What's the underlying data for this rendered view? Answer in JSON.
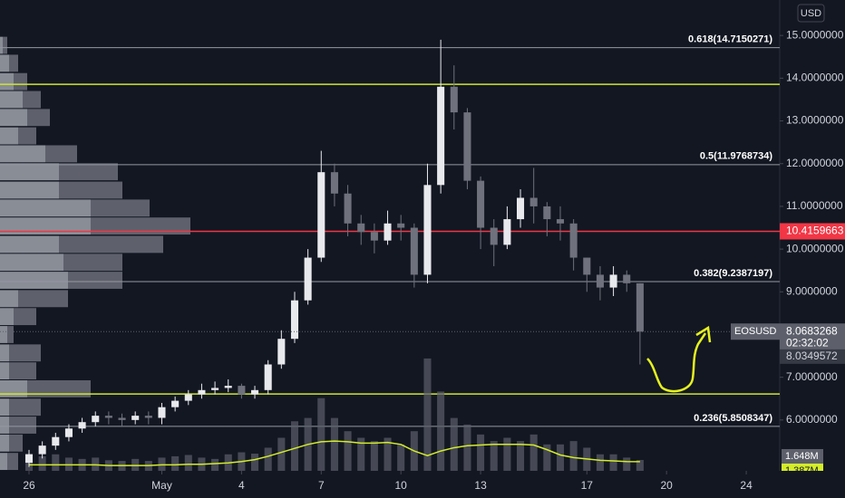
{
  "chart_data": {
    "type": "candlestick",
    "currency": "USD",
    "up_color": "#e8e9ed",
    "down_color": "#6f727c",
    "x": [
      0,
      0.5,
      1,
      1.5,
      2,
      2.5,
      3,
      3.5,
      4,
      4.5,
      5,
      5.5,
      6,
      6.5,
      7,
      7.5,
      8,
      8.5,
      9,
      9.5,
      10,
      10.5,
      11,
      11.5,
      12,
      12.5,
      13,
      13.5,
      14,
      14.5,
      15,
      15.5,
      16,
      16.5,
      17,
      17.5,
      18,
      18.5,
      19,
      19.5,
      20,
      20.5,
      21,
      21.5,
      22,
      22.5,
      23
    ],
    "open": [
      5.0,
      5.2,
      5.4,
      5.6,
      5.8,
      5.95,
      6.1,
      6.05,
      6.0,
      6.1,
      6.05,
      6.3,
      6.45,
      6.6,
      6.7,
      6.75,
      6.8,
      6.6,
      6.7,
      7.3,
      7.9,
      8.8,
      9.8,
      11.8,
      11.3,
      10.6,
      10.4,
      10.2,
      10.6,
      10.5,
      9.4,
      11.5,
      13.8,
      13.2,
      11.6,
      10.5,
      10.1,
      10.7,
      11.2,
      11.0,
      10.7,
      10.6,
      9.8,
      9.4,
      9.1,
      9.4,
      9.2
    ],
    "high": [
      5.3,
      5.5,
      5.7,
      5.9,
      6.05,
      6.2,
      6.2,
      6.15,
      6.2,
      6.2,
      6.4,
      6.55,
      6.7,
      6.85,
      6.9,
      6.95,
      6.85,
      6.8,
      7.4,
      8.1,
      9.0,
      10.0,
      12.3,
      12.0,
      11.5,
      10.8,
      10.6,
      10.9,
      10.8,
      10.6,
      12.0,
      14.9,
      14.3,
      13.3,
      11.7,
      10.7,
      11.0,
      11.4,
      11.9,
      11.1,
      11.0,
      10.7,
      9.8,
      9.6,
      9.6,
      9.5,
      9.2
    ],
    "low": [
      4.9,
      5.1,
      5.3,
      5.5,
      5.7,
      5.85,
      5.9,
      5.85,
      5.9,
      5.9,
      5.9,
      6.2,
      6.35,
      6.5,
      6.6,
      6.65,
      6.5,
      6.5,
      6.6,
      7.2,
      7.8,
      8.7,
      9.7,
      11.0,
      10.3,
      10.1,
      9.9,
      10.1,
      10.2,
      9.1,
      9.2,
      11.3,
      12.8,
      11.4,
      10.0,
      9.6,
      10.0,
      10.5,
      10.6,
      10.3,
      10.2,
      9.5,
      9.0,
      8.8,
      8.9,
      9.0,
      7.3
    ],
    "close": [
      5.2,
      5.4,
      5.6,
      5.8,
      5.95,
      6.1,
      6.05,
      6.0,
      6.1,
      6.05,
      6.3,
      6.45,
      6.6,
      6.7,
      6.75,
      6.8,
      6.6,
      6.7,
      7.3,
      7.9,
      8.8,
      9.8,
      11.8,
      11.3,
      10.6,
      10.4,
      10.2,
      10.6,
      10.5,
      9.4,
      11.5,
      13.8,
      13.2,
      11.6,
      10.5,
      10.1,
      10.7,
      11.2,
      11.0,
      10.7,
      10.6,
      9.8,
      9.4,
      9.1,
      9.4,
      9.2,
      8.0683268
    ],
    "volume": [
      1.8,
      2.2,
      2.5,
      2.0,
      1.8,
      2.0,
      1.6,
      1.5,
      1.8,
      1.5,
      2.0,
      2.2,
      2.4,
      2.0,
      1.8,
      2.5,
      2.8,
      2.6,
      3.5,
      5.0,
      7.5,
      8.0,
      11.0,
      8.0,
      6.0,
      5.0,
      4.5,
      5.0,
      4.0,
      6.0,
      17.0,
      12.0,
      8.0,
      7.0,
      5.5,
      4.5,
      5.0,
      4.5,
      5.5,
      4.0,
      4.0,
      4.5,
      3.5,
      2.5,
      2.5,
      2.0,
      1.648
    ],
    "volume_ma": [
      0.9,
      0.9,
      0.9,
      0.9,
      0.9,
      0.9,
      0.8,
      0.8,
      0.8,
      0.8,
      0.9,
      0.9,
      1.0,
      1.0,
      1.1,
      1.2,
      1.4,
      1.7,
      2.2,
      2.8,
      3.4,
      4.0,
      4.4,
      4.5,
      4.4,
      4.2,
      4.2,
      4.3,
      4.0,
      3.0,
      2.3,
      3.0,
      3.5,
      3.8,
      3.9,
      4.0,
      4.0,
      4.0,
      3.9,
      3.2,
      2.4,
      2.0,
      1.8,
      1.6,
      1.5,
      1.4,
      1.387
    ],
    "volume_color": "#5d606b",
    "volume_ma_color": "#d4ec2a",
    "vlim": [
      0,
      20
    ],
    "volume_tag": {
      "value": 1.648,
      "label": "1.648M"
    },
    "volume_ma_tag": {
      "value": 1.387,
      "label": "1.387M"
    },
    "xlim": [
      -1.092,
      28.26
    ],
    "xticks": [
      {
        "value": 0,
        "label": "26"
      },
      {
        "value": 5,
        "label": "May"
      },
      {
        "value": 8,
        "label": "4"
      },
      {
        "value": 11,
        "label": "7"
      },
      {
        "value": 14,
        "label": "10"
      },
      {
        "value": 17,
        "label": "13"
      },
      {
        "value": 21,
        "label": "17"
      },
      {
        "value": 24,
        "label": "20"
      },
      {
        "value": 27,
        "label": "24"
      }
    ],
    "ylim": [
      4.81,
      15.83
    ],
    "yticks": [
      {
        "value": 6,
        "label": "6.0000000"
      },
      {
        "value": 7,
        "label": "7.0000000"
      },
      {
        "value": 9,
        "label": "9.0000000"
      },
      {
        "value": 10,
        "label": "10.0000000"
      },
      {
        "value": 11,
        "label": "11.0000000"
      },
      {
        "value": 12,
        "label": "12.0000000"
      },
      {
        "value": 13,
        "label": "13.0000000"
      },
      {
        "value": 14,
        "label": "14.0000000"
      },
      {
        "value": 15,
        "label": "15.0000000"
      }
    ],
    "fib_color": "#9598a1",
    "fib_levels": [
      {
        "value": 14.7150271,
        "label": "0.618(14.7150271)"
      },
      {
        "value": 11.9768734,
        "label": "0.5(11.9768734)"
      },
      {
        "value": 9.2387197,
        "label": "0.382(9.2387197)"
      },
      {
        "value": 5.8508347,
        "label": "0.236(5.8508347)"
      }
    ],
    "support_lines": {
      "color": "#cde632",
      "values": [
        13.857,
        6.61
      ]
    },
    "price_line": {
      "value": 10.4159663,
      "color": "#f23645"
    },
    "last_price": {
      "symbol": "EOSUSD",
      "countdown": "02:32:02",
      "alt_price": 8.0349572
    },
    "volume_profile": {
      "prices": [
        14.77,
        14.35,
        13.92,
        13.5,
        13.08,
        12.65,
        12.23,
        11.81,
        11.38,
        10.96,
        10.54,
        10.11,
        9.69,
        9.27,
        8.84,
        8.42,
        8.0,
        7.57,
        7.15,
        6.73,
        6.3,
        5.88,
        5.46,
        5.03
      ],
      "up": [
        3,
        10,
        15,
        25,
        30,
        20,
        50,
        65,
        65,
        100,
        100,
        65,
        70,
        75,
        20,
        15,
        8,
        10,
        10,
        30,
        10,
        10,
        10,
        8
      ],
      "down": [
        5,
        10,
        15,
        20,
        25,
        20,
        35,
        65,
        70,
        65,
        110,
        115,
        65,
        60,
        55,
        25,
        7,
        35,
        30,
        70,
        35,
        30,
        15,
        12
      ]
    }
  }
}
